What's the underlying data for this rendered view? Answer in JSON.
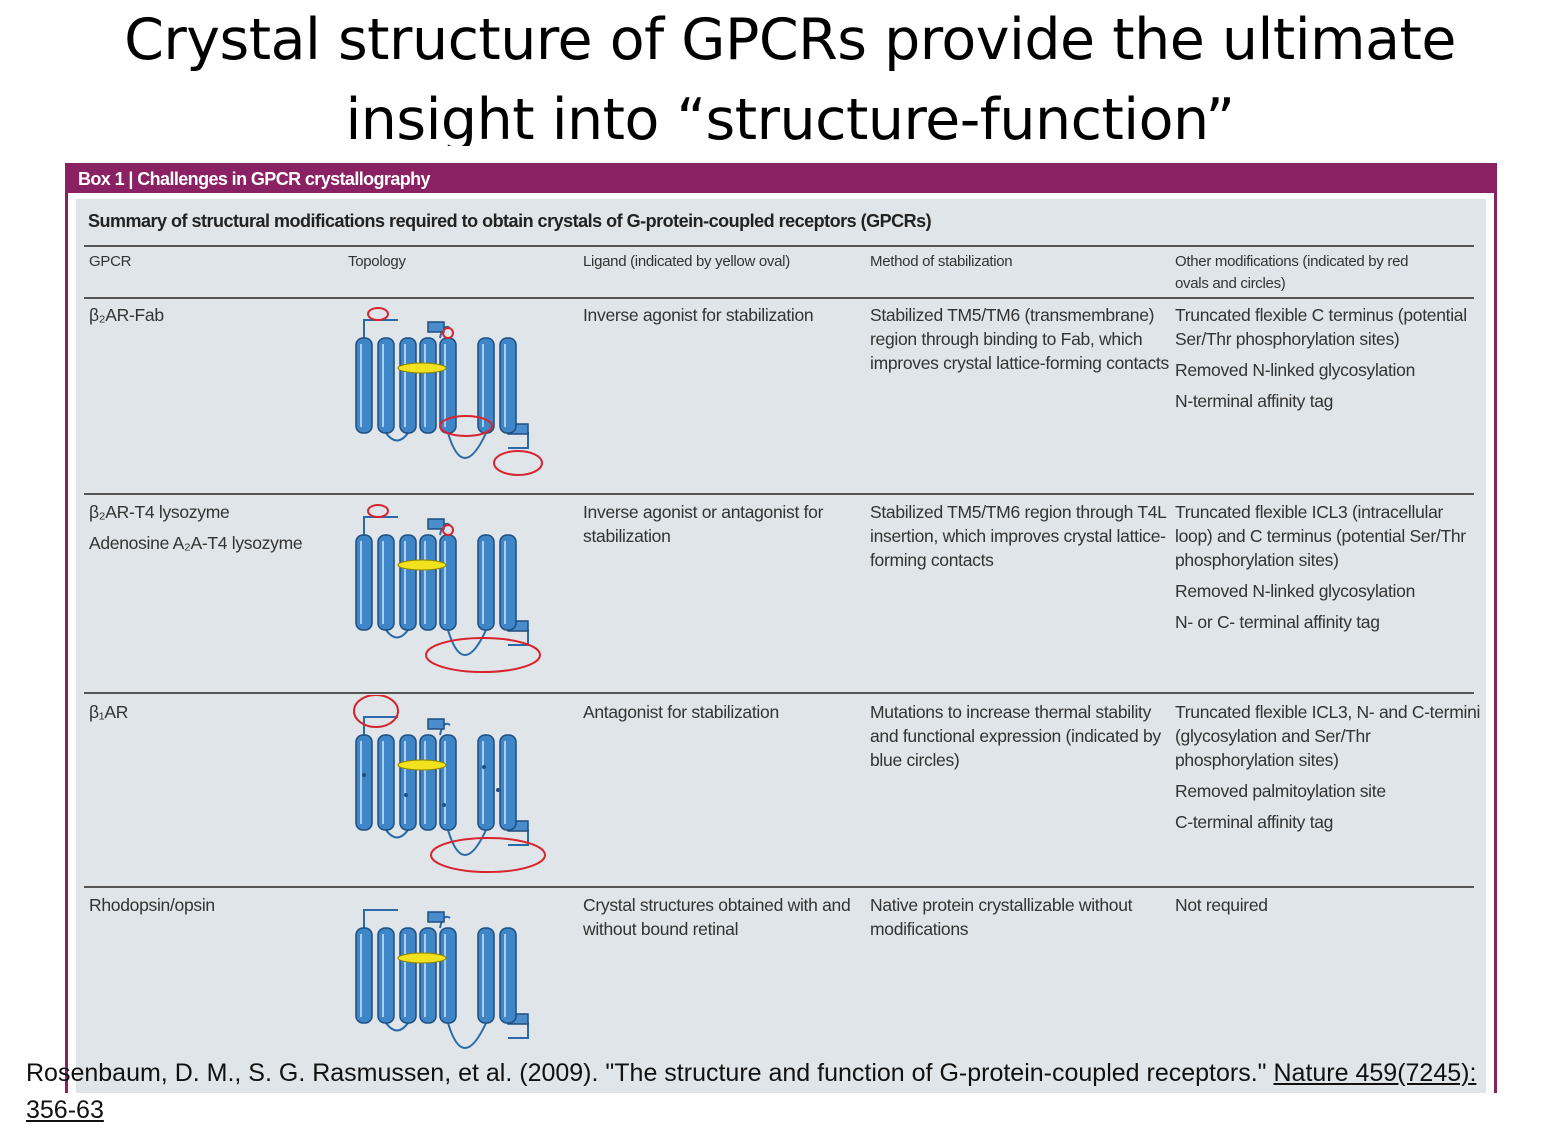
{
  "title": "Crystal structure of GPCRs provide the ultimate insight into “structure-function”",
  "box": {
    "header": "Box 1 | Challenges in GPCR crystallography",
    "caption": "Summary of structural modifications required to obtain crystals of G-protein-coupled receptors (GPCRs)",
    "columns": [
      "GPCR",
      "Topology",
      "Ligand (indicated by yellow oval)",
      "Method of stabilization",
      "Other modifications (indicated by red ovals and circles)"
    ],
    "rows": [
      {
        "gpcr": [
          "β₂AR-Fab"
        ],
        "ligand": [
          "Inverse agonist for stabilization"
        ],
        "method": [
          "Stabilized TM5/TM6 (transmembrane) region through binding to Fab, which improves crystal lattice-forming contacts"
        ],
        "other": [
          "Truncated flexible C terminus (potential Ser/Thr phosphorylation sites)",
          "Removed N-linked glycosylation",
          "N-terminal affinity tag"
        ]
      },
      {
        "gpcr": [
          "β₂AR-T4 lysozyme",
          "Adenosine A₂A-T4 lysozyme"
        ],
        "ligand": [
          "Inverse agonist or antagonist for stabilization"
        ],
        "method": [
          "Stabilized TM5/TM6 region through T4L insertion, which improves crystal lattice-forming contacts"
        ],
        "other": [
          "Truncated flexible ICL3 (intracellular loop) and C terminus (potential Ser/Thr phosphorylation sites)",
          "Removed N-linked glycosylation",
          "N- or C- terminal affinity tag"
        ]
      },
      {
        "gpcr": [
          "β₁AR"
        ],
        "ligand": [
          "Antagonist  for stabilization"
        ],
        "method": [
          "Mutations to increase thermal stability and functional expression (indicated by blue circles)"
        ],
        "other": [
          "Truncated flexible ICL3, N- and C-termini (glycosylation and Ser/Thr phosphorylation sites)",
          "Removed palmitoylation site",
          "C-terminal affinity tag"
        ]
      },
      {
        "gpcr": [
          "Rhodopsin/opsin"
        ],
        "ligand": [
          "Crystal structures obtained with and without bound retinal"
        ],
        "method": [
          "Native protein crystallizable without modifications"
        ],
        "other": [
          "Not required"
        ]
      }
    ]
  },
  "citation": {
    "text": "Rosenbaum, D. M., S. G. Rasmussen, et al. (2009). \"The structure and function of G-protein-coupled receptors.\" ",
    "source": "Nature 459(7245): 356-63"
  }
}
